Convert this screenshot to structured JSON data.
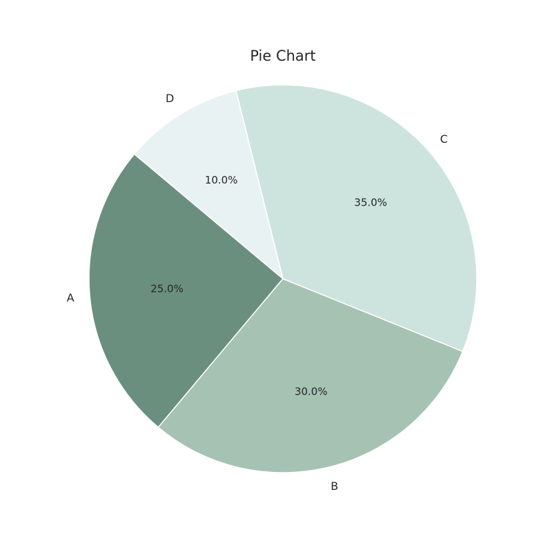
{
  "chart_data": {
    "type": "pie",
    "title": "Pie Chart",
    "start_angle_deg": 140,
    "counterclockwise": true,
    "slices": [
      {
        "label": "A",
        "value": 25.0,
        "percent_label": "25.0%",
        "color": "#6a8f7f"
      },
      {
        "label": "B",
        "value": 30.0,
        "percent_label": "30.0%",
        "color": "#a6c2b3"
      },
      {
        "label": "C",
        "value": 35.0,
        "percent_label": "35.0%",
        "color": "#cde3de"
      },
      {
        "label": "D",
        "value": 10.0,
        "percent_label": "10.0%",
        "color": "#e9f2f3"
      }
    ]
  }
}
